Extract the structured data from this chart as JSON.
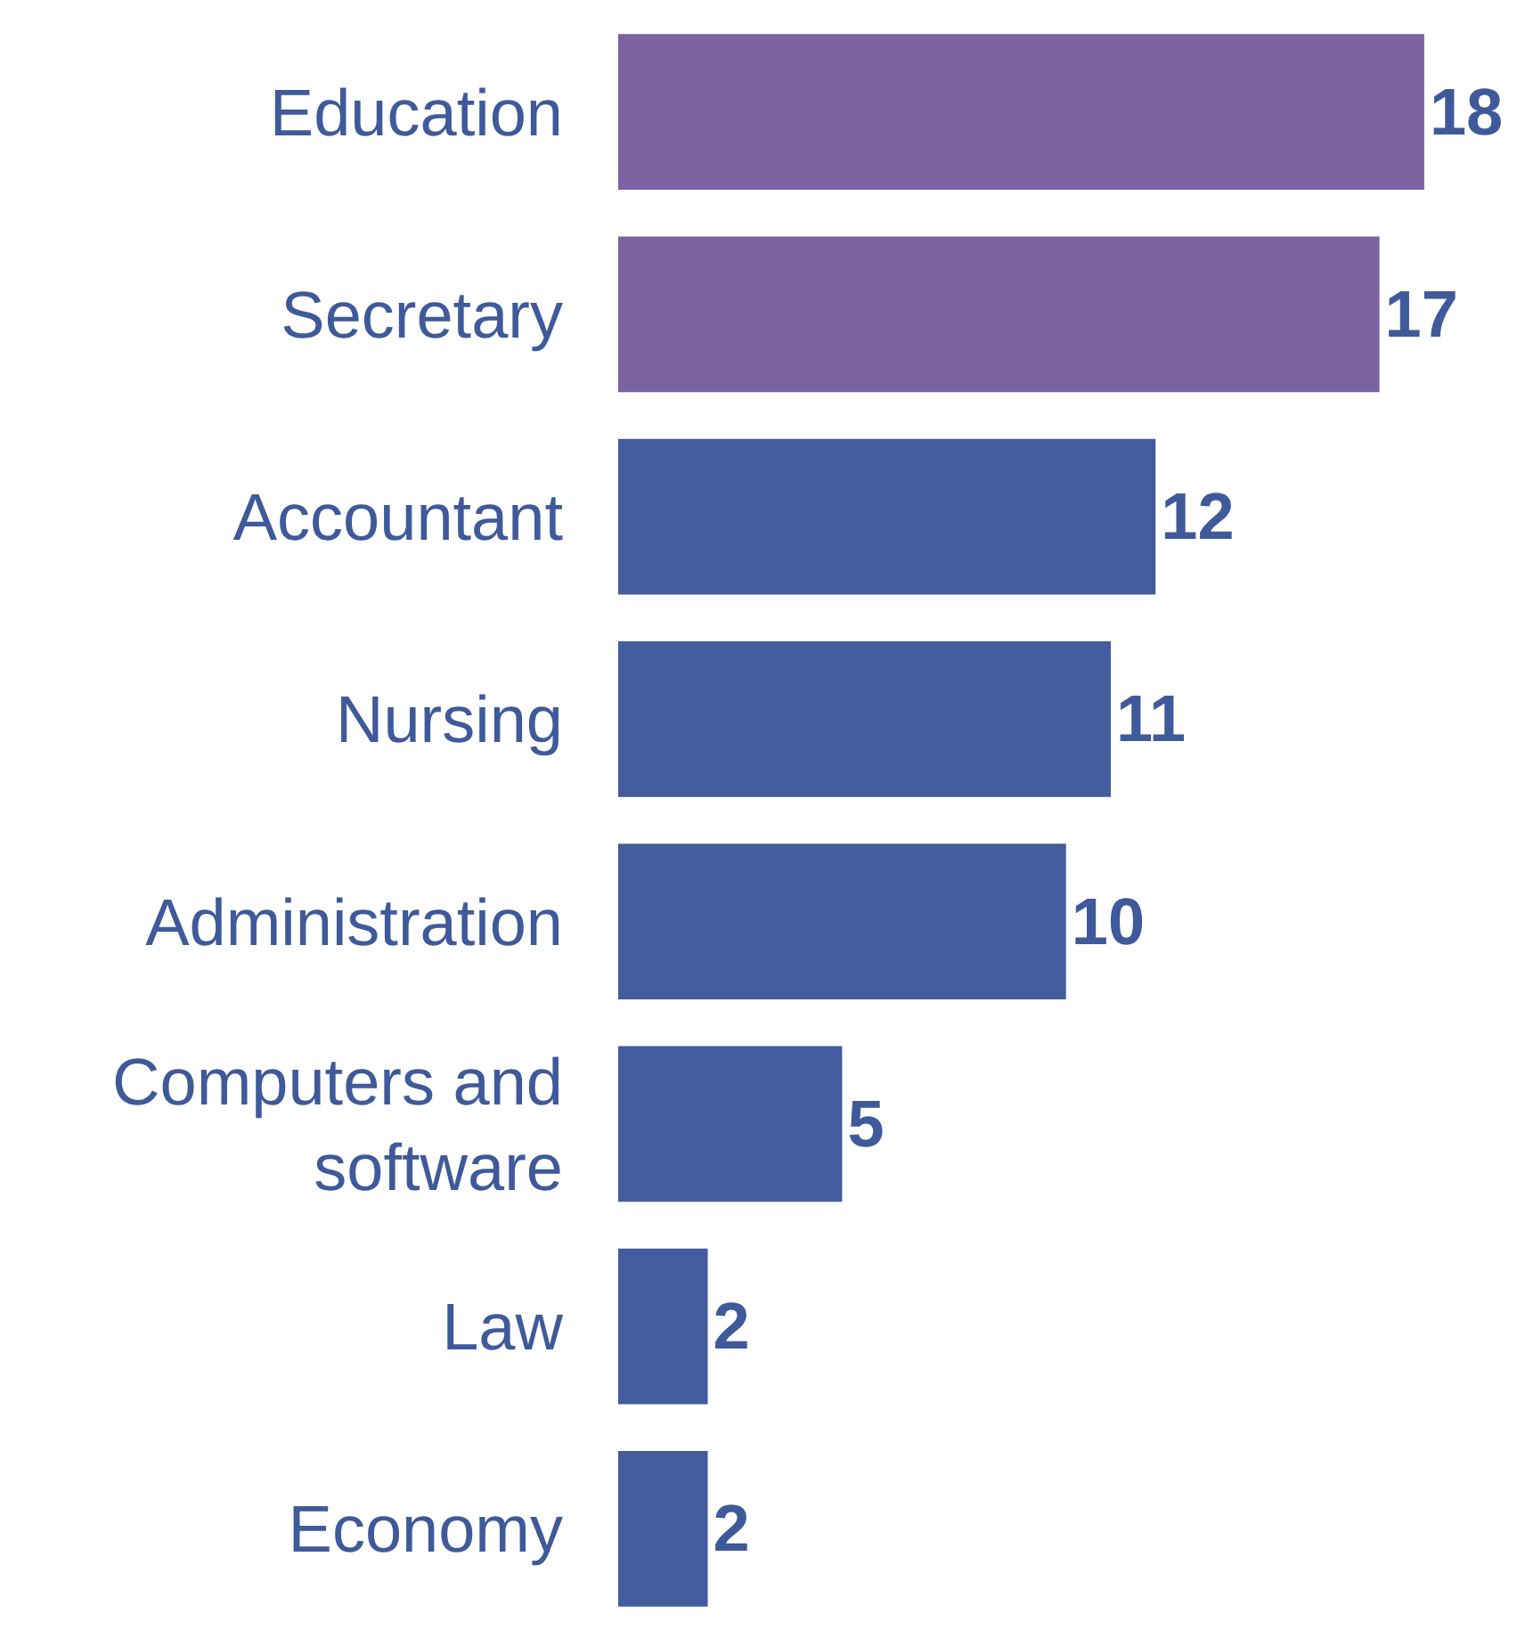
{
  "chart_data": {
    "type": "bar",
    "orientation": "horizontal",
    "categories": [
      "Education",
      "Secretary",
      "Accountant",
      "Nursing",
      "Administration",
      "Computers and software",
      "Law",
      "Economy"
    ],
    "values": [
      18,
      17,
      12,
      11,
      10,
      5,
      2,
      2
    ],
    "colors": [
      "#7b62a0",
      "#7b62a0",
      "#425c9e",
      "#425c9e",
      "#425c9e",
      "#425c9e",
      "#425c9e",
      "#425c9e"
    ],
    "data_labels": true,
    "tick_labels": "y"
  }
}
